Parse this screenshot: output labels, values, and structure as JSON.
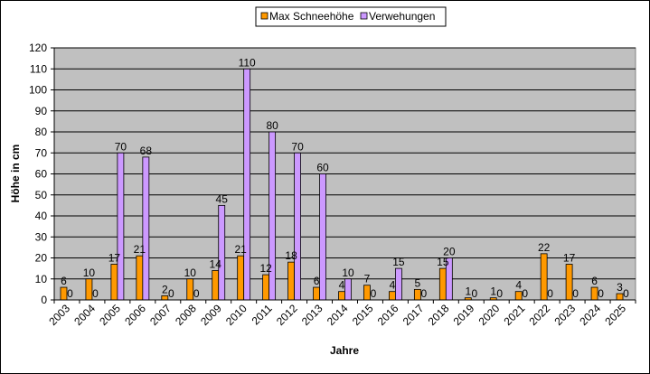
{
  "chart_data": {
    "type": "bar",
    "xlabel": "Jahre",
    "ylabel": "Höhe in cm",
    "ylim": [
      0,
      120
    ],
    "yticks": [
      0,
      10,
      20,
      30,
      40,
      50,
      60,
      70,
      80,
      90,
      100,
      110,
      120
    ],
    "grid": true,
    "legend_position": "top-center",
    "categories": [
      "2003",
      "2004",
      "2005",
      "2006",
      "2007",
      "2008",
      "2009",
      "2010",
      "2011",
      "2012",
      "2013",
      "2014",
      "2015",
      "2016",
      "2017",
      "2018",
      "2019",
      "2020",
      "2021",
      "2022",
      "2023",
      "2024",
      "2025"
    ],
    "series": [
      {
        "name": "Max Schneehöhe",
        "color": "#ff9900",
        "values": [
          6,
          10,
          17,
          21,
          2,
          10,
          14,
          21,
          12,
          18,
          6,
          4,
          7,
          4,
          5,
          15,
          1,
          1,
          4,
          22,
          17,
          6,
          3
        ]
      },
      {
        "name": "Verwehungen",
        "color": "#cc99ff",
        "values": [
          0,
          0,
          70,
          68,
          0,
          0,
          45,
          110,
          80,
          70,
          60,
          10,
          0,
          15,
          0,
          20,
          0,
          0,
          0,
          0,
          0,
          0,
          0
        ]
      }
    ]
  },
  "colors": {
    "plot_background": "#c0c0c0",
    "gridline": "#000000",
    "border": "#000000"
  }
}
